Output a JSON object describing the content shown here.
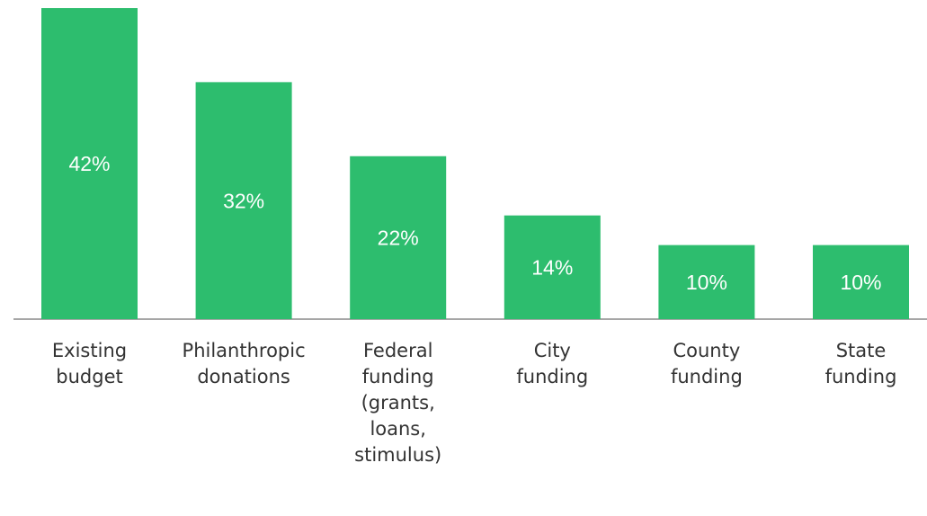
{
  "chart_data": {
    "type": "bar",
    "categories": [
      "Existing budget",
      "Philanthropic donations",
      "Federal funding (grants, loans, stimulus)",
      "City funding",
      "County funding",
      "State funding"
    ],
    "values": [
      42,
      32,
      22,
      14,
      10,
      10
    ],
    "value_labels": [
      "42%",
      "32%",
      "22%",
      "14%",
      "10%",
      "10%"
    ],
    "color": "#2dbd6e"
  }
}
